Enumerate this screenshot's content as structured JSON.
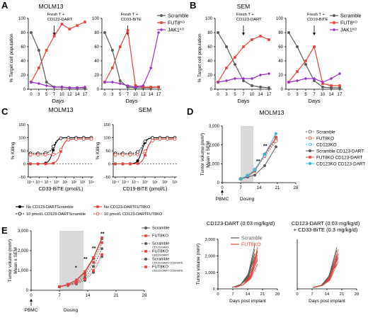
{
  "colors": {
    "scramble": "#5a5a5a",
    "fut8": "#e8403a",
    "jak1": "#9b30c8",
    "cd123": "#3cb6d3",
    "black": "#000000",
    "dosing_shade": "#d9d9d9"
  },
  "panel_letters": {
    "A": "A",
    "B": "B",
    "C": "C",
    "D": "D",
    "E": "E"
  },
  "chart_data": [
    {
      "id": "A-left",
      "type": "line",
      "panel": "A",
      "title": "MOLM13",
      "xlabel": "",
      "ylabel": "% Target cell population",
      "x": [
        "0",
        "3",
        "5",
        "7"
      ],
      "xlim": [
        0,
        7
      ],
      "ylim": [
        0,
        100
      ],
      "yticks": [
        "0",
        "20",
        "40",
        "60",
        "80",
        "100"
      ],
      "annotation": "Fresh T +\nCD123-DART",
      "annotation_day": 7,
      "series": [
        {
          "name": "Scramble",
          "key": "scramble",
          "values": [
            80,
            55,
            10,
            3
          ]
        },
        {
          "name": "FUT8KO",
          "key": "fut8",
          "values": [
            10,
            30,
            55,
            75
          ]
        },
        {
          "name": "JAK1KO",
          "key": "jak1",
          "values": [
            10,
            8,
            5,
            3
          ]
        }
      ],
      "x_after": [
        "10",
        "12",
        "14",
        "17"
      ],
      "series_after": [
        {
          "key": "scramble",
          "values": [
            3,
            2,
            2,
            2
          ]
        },
        {
          "key": "fut8",
          "values": [
            92,
            85,
            90,
            95
          ]
        },
        {
          "key": "jak1",
          "values": [
            3,
            2,
            2,
            3
          ]
        }
      ]
    },
    {
      "id": "A-right",
      "type": "line",
      "panel": "A",
      "title": "",
      "x": [
        "0",
        "3",
        "5",
        "7",
        "10",
        "12",
        "14",
        "17"
      ],
      "ylim": [
        0,
        100
      ],
      "annotation": "Fresh T +\nCD33-BiTE",
      "series": [
        {
          "name": "Scramble",
          "key": "scramble",
          "values": [
            80,
            55,
            12,
            3,
            2,
            2,
            2,
            3
          ]
        },
        {
          "name": "FUT8KO",
          "key": "fut8",
          "values": [
            10,
            30,
            60,
            83,
            5,
            3,
            3,
            3
          ]
        },
        {
          "name": "JAK1KO",
          "key": "jak1",
          "values": [
            10,
            10,
            8,
            5,
            3,
            5,
            30,
            80
          ]
        }
      ]
    },
    {
      "id": "B-left",
      "type": "line",
      "panel": "B",
      "title": "SEM",
      "ylabel": "% Target cell population",
      "x": [
        "0",
        "3",
        "5",
        "7",
        "10",
        "14",
        "17"
      ],
      "ylim": [
        0,
        100
      ],
      "annotation": "Fresh T +\nCD123-DART",
      "series": [
        {
          "name": "Scramble",
          "key": "scramble",
          "values": [
            80,
            60,
            35,
            12,
            5,
            3,
            2
          ]
        },
        {
          "name": "FUT8KO",
          "key": "fut8",
          "values": [
            10,
            30,
            45,
            60,
            70,
            75,
            70
          ]
        },
        {
          "name": "JAK1KO",
          "key": "jak1",
          "values": [
            10,
            12,
            15,
            15,
            15,
            20,
            22
          ]
        }
      ]
    },
    {
      "id": "B-right",
      "type": "line",
      "panel": "B",
      "title": "",
      "x": [
        "0",
        "3",
        "5",
        "7",
        "10",
        "14",
        "17"
      ],
      "ylim": [
        0,
        100
      ],
      "annotation": "Fresh T +\nCD19-BiTE",
      "series": [
        {
          "name": "Scramble",
          "key": "scramble",
          "values": [
            80,
            60,
            35,
            12,
            3,
            2,
            2
          ]
        },
        {
          "name": "FUT8KO",
          "key": "fut8",
          "values": [
            10,
            25,
            40,
            60,
            8,
            5,
            5
          ]
        },
        {
          "name": "JAK1KO",
          "key": "jak1",
          "values": [
            10,
            12,
            15,
            15,
            10,
            15,
            22
          ]
        }
      ]
    },
    {
      "id": "C-left",
      "type": "scatter",
      "panel": "C",
      "title": "MOLM13",
      "xlabel": "CD33-BiTE (pmol/L)",
      "ylabel": "% Killing",
      "ylim": [
        -50,
        150
      ],
      "yticks": [
        "-50",
        "0",
        "50",
        "100",
        "150"
      ],
      "xticks": [
        "10⁻³",
        "10⁻²",
        "10⁻¹",
        "10⁰",
        "10¹",
        "10²",
        "10³",
        "10⁴"
      ]
    },
    {
      "id": "C-right",
      "type": "scatter",
      "panel": "C",
      "title": "SEM",
      "xlabel": "CD19-BiTE (pmol/L)",
      "ylabel": "% Killing",
      "ylim": [
        -50,
        150
      ],
      "yticks": [
        "-50",
        "0",
        "50",
        "100",
        "150"
      ],
      "xticks": [
        "10⁻³",
        "10⁻²",
        "10⁻¹",
        "10⁰",
        "10¹",
        "10²",
        "10³"
      ]
    },
    {
      "id": "D",
      "type": "line",
      "panel": "D",
      "title": "MOLM13",
      "ylabel": "Tumor volume (mm³)\nMean ± SEM",
      "xticks": [
        "0",
        "7",
        "14",
        "21",
        "28"
      ],
      "yticks": [
        "0",
        "1,000",
        "2,000",
        "3,000"
      ],
      "xlabel_left": "PBMC",
      "dosing_label": "Dosing",
      "sig": "**",
      "series": [
        {
          "name": "Scramble",
          "key": "scramble",
          "values": [
            200,
            380,
            700,
            1500,
            2300
          ]
        },
        {
          "name": "FUT8KO",
          "key": "fut8",
          "values": [
            200,
            360,
            650,
            1400,
            2200
          ]
        },
        {
          "name": "CD123KO",
          "key": "cd123",
          "values": [
            200,
            380,
            690,
            1450,
            2400
          ]
        },
        {
          "name": "Scramble CD123-DART",
          "key": "scramble",
          "values": [
            200,
            300,
            400,
            900,
            1900
          ]
        },
        {
          "name": "FUT8KO CD123-DART",
          "key": "fut8",
          "values": [
            200,
            360,
            600,
            1500,
            2400
          ]
        },
        {
          "name": "CD123KO CD123-DART",
          "key": "cd123",
          "values": [
            200,
            370,
            650,
            1500,
            2600
          ]
        }
      ]
    },
    {
      "id": "E-left",
      "type": "line",
      "panel": "E",
      "ylabel": "Tumor volume (mm³)\nMean ± SEM",
      "xticks": [
        "0",
        "7",
        "14",
        "21",
        "28"
      ],
      "yticks": [
        "0",
        "1,000",
        "2,000",
        "3,000"
      ],
      "xlabel_left": "PBMC",
      "dosing_label": "Dosing",
      "sigs": [
        "*",
        "**",
        "**",
        "**"
      ],
      "legend": [
        {
          "name": "Scramble",
          "sub": ""
        },
        {
          "name": "FUT8KO",
          "sub": ""
        },
        {
          "name": "Scramble",
          "sub": "CD123-DART"
        },
        {
          "name": "FUT8KO",
          "sub": "CD123-DART"
        },
        {
          "name": "Scramble",
          "sub": "CD123-DART CD33-BiTE"
        },
        {
          "name": "FUT8KO",
          "sub": "CD123-DART CD33-BiTE"
        }
      ]
    },
    {
      "id": "E-mid",
      "type": "line",
      "panel": "E",
      "title": "CD123-DART (0.03 mg/kg/d)",
      "ylabel": "Tumor volume (mm³)",
      "xlabel": "Days post implant",
      "xticks": [
        "0",
        "7",
        "14",
        "21",
        "28"
      ],
      "yticks": [
        "0",
        "1,000",
        "2,000",
        "3,000"
      ],
      "legend": [
        {
          "name": "Scramble",
          "key": "scramble"
        },
        {
          "name": "FUT8KO",
          "key": "fut8"
        }
      ]
    },
    {
      "id": "E-right",
      "type": "line",
      "panel": "E",
      "title": "CD123-DART (0.03 mg/kg/d)\n+ CD33-BiTE (0.3 mg/kg/d)",
      "xlabel": "Days post implant",
      "xticks": [
        "0",
        "7",
        "14",
        "21",
        "28"
      ]
    }
  ],
  "text": {
    "days": "Days",
    "legendA": [
      "Scramble",
      "FUT8",
      "JAK1"
    ],
    "legendA_sup": [
      "",
      "KO",
      "KO"
    ],
    "legendC": [
      "No CD123-DARTScramble",
      "10 pmol/L CD123-DARTScramble",
      "No CD123-DARTFUT8KO",
      "10 pmol/L CD123-DARTFUT8KO"
    ]
  }
}
